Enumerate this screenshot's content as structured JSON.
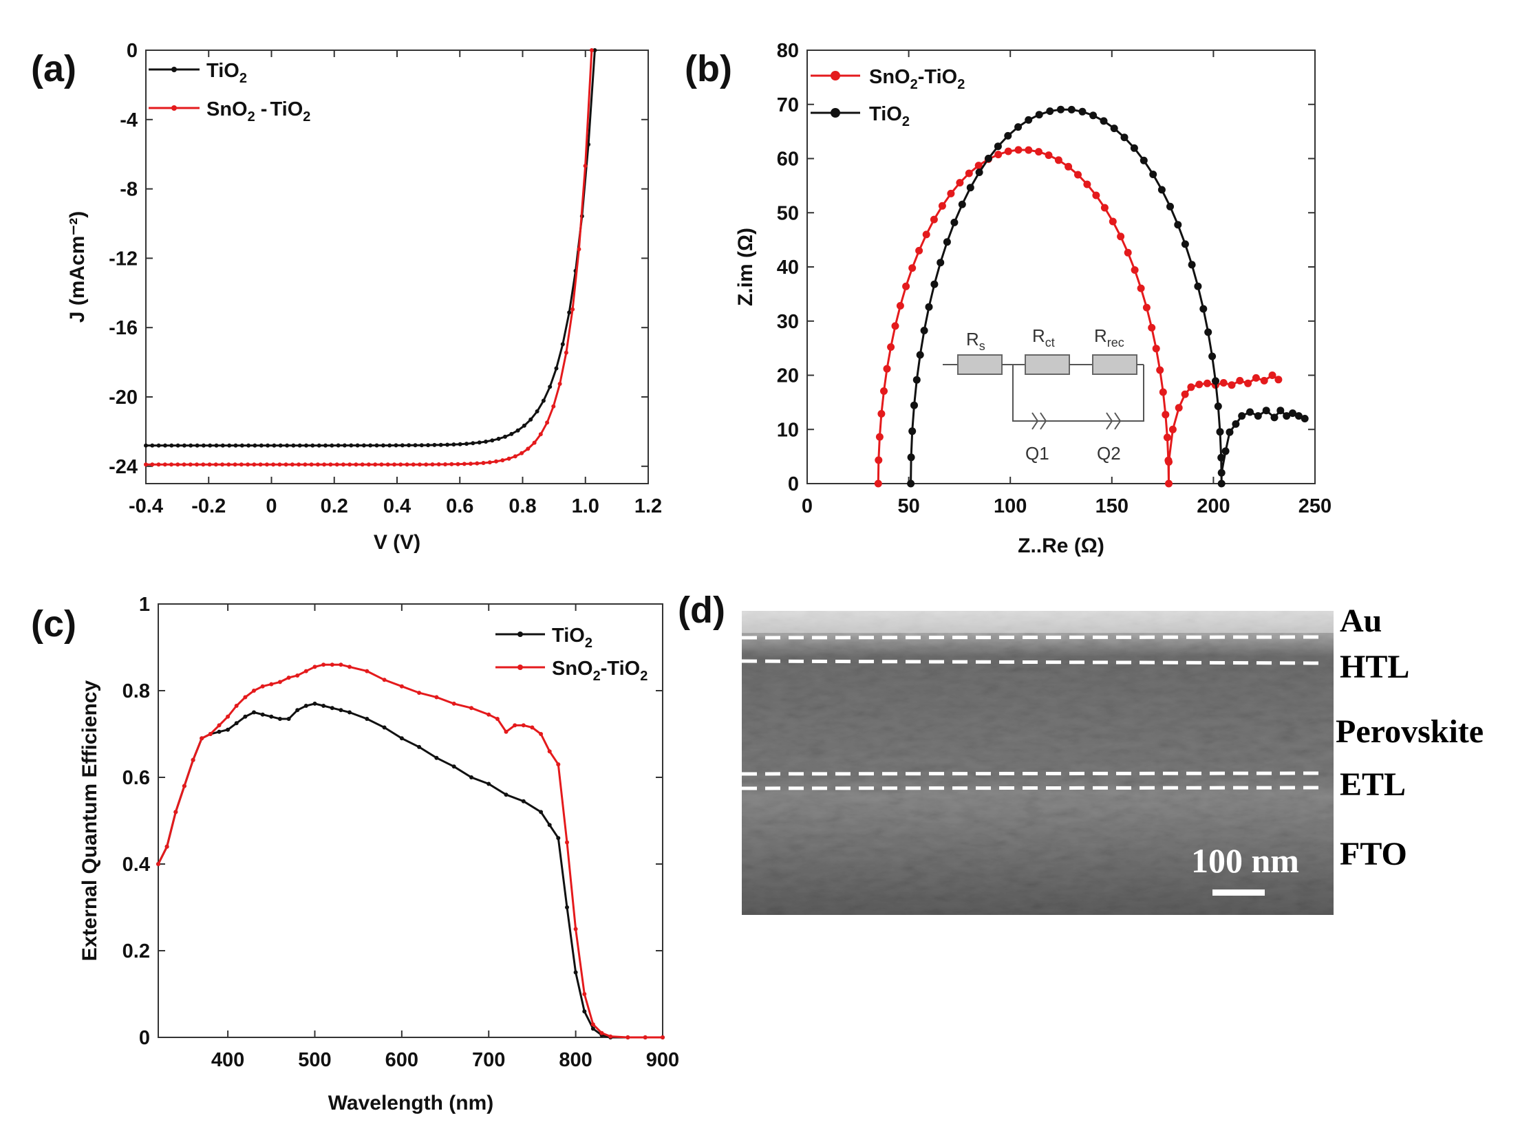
{
  "colors": {
    "tio2": "#111111",
    "sno2_tio2": "#e41a1c",
    "axis": "#333333"
  },
  "panels": {
    "a": {
      "label": "(a)"
    },
    "b": {
      "label": "(b)"
    },
    "c": {
      "label": "(c)"
    },
    "d": {
      "label": "(d)"
    }
  },
  "legend_text": {
    "tio2_base": "TiO",
    "tio2_sub": "2",
    "sn_base": "SnO",
    "sn_sub": "2",
    "a_sep": " -",
    "bc_sep": "-"
  },
  "circuit": {
    "rs": "R",
    "rs_sub": "s",
    "rct": "R",
    "rct_sub": "ct",
    "rrec": "R",
    "rrec_sub": "rec",
    "q1": "Q1",
    "q2": "Q2"
  },
  "sem": {
    "layers": [
      "Au",
      "HTL",
      "Perovskite",
      "ETL",
      "FTO"
    ],
    "scale_bar": "100 nm"
  },
  "chart_data": [
    {
      "id": "a",
      "type": "line",
      "xlabel": "V (V)",
      "ylabel": "J (mAcm⁻²)",
      "xlim": [
        -0.4,
        1.2
      ],
      "ylim": [
        -25,
        0
      ],
      "xticks": [
        -0.4,
        -0.2,
        0,
        0.2,
        0.4,
        0.6,
        0.8,
        1.0,
        1.2
      ],
      "xtick_labels": [
        "-0.4",
        "-0.2",
        "0",
        "0.2",
        "0.4",
        "0.6",
        "0.8",
        "1.0",
        "1.2"
      ],
      "yticks": [
        0,
        -4,
        -8,
        -12,
        -16,
        -20,
        -24
      ],
      "ytick_labels": [
        "0",
        "-4",
        "-8",
        "-12",
        "-16",
        "-20",
        "-24"
      ],
      "legend": [
        "TiO2",
        "SnO2 -TiO2"
      ],
      "series": [
        {
          "name": "TiO2",
          "jsc": -22.8,
          "voc": 1.03,
          "ideality": 0.075,
          "points": 70
        },
        {
          "name": "SnO2 -TiO2",
          "jsc": -23.9,
          "voc": 1.02,
          "ideality": 0.062,
          "points": 70
        }
      ]
    },
    {
      "id": "b",
      "type": "scatter",
      "xlabel": "Z..Re (Ω)",
      "ylabel": "Z.im (Ω)",
      "xlim": [
        0,
        250
      ],
      "ylim": [
        0,
        80
      ],
      "xticks": [
        0,
        50,
        100,
        150,
        200,
        250
      ],
      "xtick_labels": [
        "0",
        "50",
        "100",
        "150",
        "200",
        "250"
      ],
      "yticks": [
        0,
        10,
        20,
        30,
        40,
        50,
        60,
        70,
        80
      ],
      "ytick_labels": [
        "0",
        "10",
        "20",
        "30",
        "40",
        "50",
        "60",
        "70",
        "80"
      ],
      "legend": [
        "SnO2-TiO2",
        "TiO2"
      ],
      "series": [
        {
          "name": "SnO2-TiO2",
          "arc": {
            "start": 35,
            "end": 178,
            "peak": 62,
            "points": 45
          },
          "tail": [
            [
              178,
              4
            ],
            [
              180,
              10
            ],
            [
              183,
              14
            ],
            [
              186,
              16.5
            ],
            [
              189,
              17.8
            ],
            [
              193,
              18.3
            ],
            [
              197,
              18.5
            ],
            [
              201,
              18.2
            ],
            [
              205,
              18.6
            ],
            [
              209,
              18.2
            ],
            [
              213,
              19.0
            ],
            [
              217,
              18.5
            ],
            [
              221,
              19.5
            ],
            [
              225,
              19.0
            ],
            [
              229,
              20.0
            ],
            [
              232,
              19.2
            ]
          ]
        },
        {
          "name": "TiO2",
          "arc": {
            "start": 51,
            "end": 204,
            "peak": 69.5,
            "points": 45
          },
          "tail": [
            [
              204,
              2
            ],
            [
              206,
              6
            ],
            [
              208,
              9.5
            ],
            [
              211,
              11
            ],
            [
              214,
              12.5
            ],
            [
              218,
              13.2
            ],
            [
              222,
              12.5
            ],
            [
              226,
              13.5
            ],
            [
              230,
              12.2
            ],
            [
              233,
              13.5
            ],
            [
              236,
              12.5
            ],
            [
              239,
              13.0
            ],
            [
              242,
              12.5
            ],
            [
              245,
              12.0
            ]
          ]
        }
      ]
    },
    {
      "id": "c",
      "type": "line",
      "xlabel": "Wavelength (nm)",
      "ylabel": "External Quantum Efficiency",
      "xlim": [
        320,
        900
      ],
      "ylim": [
        0,
        1
      ],
      "xticks": [
        400,
        500,
        600,
        700,
        800,
        900
      ],
      "xtick_labels": [
        "400",
        "500",
        "600",
        "700",
        "800",
        "900"
      ],
      "yticks": [
        0,
        0.2,
        0.4,
        0.6,
        0.8,
        1
      ],
      "ytick_labels": [
        "0",
        "0.2",
        "0.4",
        "0.6",
        "0.8",
        "1"
      ],
      "legend": [
        "TiO2",
        "SnO2-TiO2"
      ],
      "series": [
        {
          "name": "TiO2",
          "x": [
            320,
            330,
            340,
            350,
            360,
            370,
            380,
            390,
            400,
            410,
            420,
            430,
            440,
            450,
            460,
            470,
            480,
            490,
            500,
            510,
            520,
            530,
            540,
            560,
            580,
            600,
            620,
            640,
            660,
            680,
            700,
            720,
            740,
            760,
            770,
            780,
            790,
            800,
            810,
            820,
            830,
            840,
            860,
            880,
            900
          ],
          "y": [
            0.4,
            0.44,
            0.52,
            0.58,
            0.64,
            0.69,
            0.7,
            0.705,
            0.71,
            0.725,
            0.74,
            0.75,
            0.745,
            0.74,
            0.735,
            0.735,
            0.755,
            0.765,
            0.77,
            0.765,
            0.76,
            0.755,
            0.75,
            0.735,
            0.715,
            0.69,
            0.67,
            0.645,
            0.625,
            0.6,
            0.585,
            0.56,
            0.545,
            0.52,
            0.49,
            0.46,
            0.3,
            0.15,
            0.06,
            0.02,
            0.005,
            0.0,
            0.0,
            0.0,
            0.0
          ]
        },
        {
          "name": "SnO2-TiO2",
          "x": [
            320,
            330,
            340,
            350,
            360,
            370,
            380,
            390,
            400,
            410,
            420,
            430,
            440,
            450,
            460,
            470,
            480,
            490,
            500,
            510,
            520,
            530,
            540,
            560,
            580,
            600,
            620,
            640,
            660,
            680,
            700,
            710,
            720,
            730,
            740,
            750,
            760,
            770,
            780,
            790,
            800,
            810,
            820,
            830,
            840,
            860,
            880,
            900
          ],
          "y": [
            0.4,
            0.44,
            0.52,
            0.58,
            0.64,
            0.69,
            0.7,
            0.72,
            0.74,
            0.765,
            0.785,
            0.8,
            0.81,
            0.815,
            0.82,
            0.83,
            0.835,
            0.845,
            0.855,
            0.86,
            0.86,
            0.86,
            0.855,
            0.845,
            0.825,
            0.81,
            0.795,
            0.785,
            0.77,
            0.76,
            0.745,
            0.735,
            0.705,
            0.72,
            0.72,
            0.715,
            0.7,
            0.66,
            0.63,
            0.45,
            0.25,
            0.1,
            0.03,
            0.01,
            0.002,
            0.0,
            0.0,
            0.0
          ]
        }
      ]
    }
  ]
}
